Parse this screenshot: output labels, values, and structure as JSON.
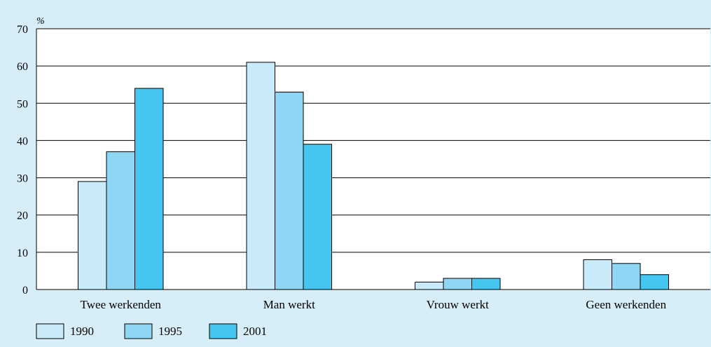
{
  "chart_data": {
    "type": "bar",
    "unit": "%",
    "categories": [
      "Twee werkenden",
      "Man werkt",
      "Vrouw werkt",
      "Geen werkenden"
    ],
    "series": [
      {
        "name": "1990",
        "values": [
          29,
          61,
          2,
          8
        ],
        "color": "#c8eaf9"
      },
      {
        "name": "1995",
        "values": [
          37,
          53,
          3,
          7
        ],
        "color": "#8fd6f4"
      },
      {
        "name": "2001",
        "values": [
          54,
          39,
          3,
          4
        ],
        "color": "#45c6f0"
      }
    ],
    "ylim": [
      0,
      70
    ],
    "yticks": [
      0,
      10,
      20,
      30,
      40,
      50,
      60,
      70
    ],
    "grid": true,
    "legend": "bottom-left"
  }
}
